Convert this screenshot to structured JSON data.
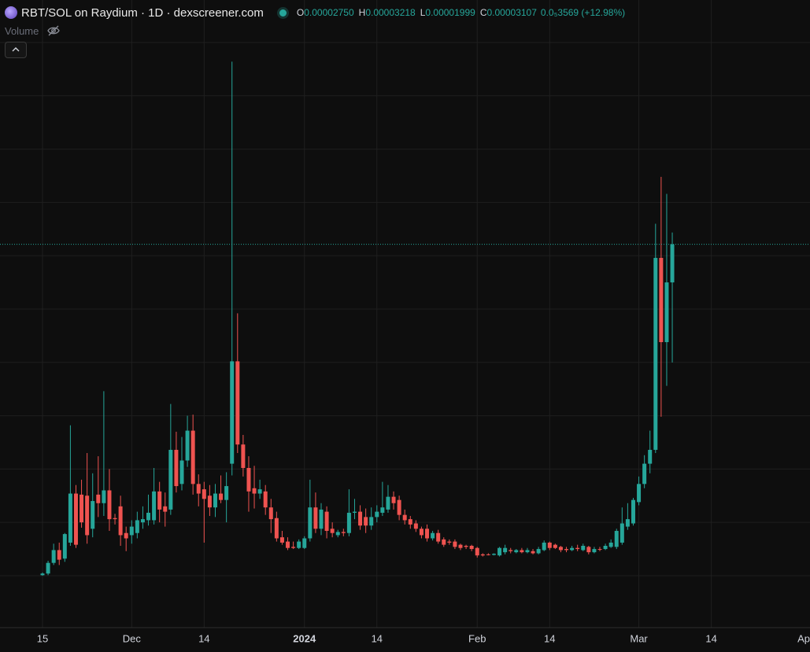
{
  "header": {
    "symbol": "RBT/SOL on Raydium · 1D · dexscreener.com",
    "ohlc": [
      {
        "key": "O",
        "value": "0.00002750"
      },
      {
        "key": "H",
        "value": "0.00003218"
      },
      {
        "key": "L",
        "value": "0.00001999"
      },
      {
        "key": "C",
        "value": "0.00003107"
      }
    ],
    "change": "0.0₅3569 (+12.98%)",
    "volume": "Volume"
  },
  "chart_data": {
    "type": "candlestick",
    "categories": [
      "15",
      null,
      null,
      null,
      null,
      null,
      null,
      null,
      null,
      null,
      null,
      null,
      null,
      null,
      null,
      null,
      "Dec",
      null,
      null,
      null,
      null,
      null,
      null,
      null,
      null,
      null,
      null,
      null,
      null,
      "14",
      null,
      null,
      null,
      null,
      null,
      null,
      null,
      null,
      null,
      null,
      null,
      null,
      null,
      null,
      null,
      null,
      null,
      "2024",
      null,
      null,
      null,
      null,
      null,
      null,
      null,
      null,
      null,
      null,
      null,
      null,
      "14",
      null,
      null,
      null,
      null,
      null,
      null,
      null,
      null,
      null,
      null,
      null,
      null,
      null,
      null,
      null,
      null,
      null,
      "Feb",
      null,
      null,
      null,
      null,
      null,
      null,
      null,
      null,
      null,
      null,
      null,
      null,
      "14",
      null,
      null,
      null,
      null,
      null,
      null,
      null,
      null,
      null,
      null,
      null,
      null,
      null,
      null,
      null,
      "Mar",
      null,
      null,
      null,
      null,
      null,
      null,
      null,
      null,
      null,
      null,
      null,
      null,
      "14",
      null,
      null,
      null,
      null,
      null,
      null,
      null,
      null,
      null,
      null,
      null,
      null,
      null,
      null,
      null,
      null,
      null,
      "Ap"
    ],
    "open": [
      5e-08,
      2e-07,
      1.2e-06,
      2.4e-06,
      1.6e-06,
      3.1e-06,
      7.7e-06,
      7.6e-06,
      7.5e-06,
      4.4e-06,
      7.6e-06,
      6.8e-06,
      8e-06,
      5.4e-06,
      6.5e-06,
      4e-06,
      3.8e-06,
      4e-06,
      5e-06,
      5.2e-06,
      5.2e-06,
      7.9e-06,
      6.5e-06,
      6.2e-06,
      1.18e-05,
      8.6e-06,
      1.08e-05,
      1.36e-05,
      8.6e-06,
      8.1e-06,
      7.5e-06,
      6.4e-06,
      7.7e-06,
      7.1e-06,
      1.05e-05,
      2.01e-05,
      1.23e-05,
      1.01e-05,
      8.2e-06,
      7.7e-06,
      7.9e-06,
      6.4e-06,
      5.4e-06,
      3.6e-06,
      3.2e-06,
      2.7e-06,
      2.6e-06,
      2.6e-06,
      3.5e-06,
      6.4e-06,
      4.4e-06,
      6e-06,
      4.4e-06,
      3.8e-06,
      4.1e-06,
      4e-06,
      5.9e-06,
      6e-06,
      5.5e-06,
      4.7e-06,
      5.5e-06,
      5.9e-06,
      6.2e-06,
      7.4e-06,
      7.1e-06,
      5.7e-06,
      5.3e-06,
      4.9e-06,
      4.4e-06,
      4.4e-06,
      3.5e-06,
      4e-06,
      3.4e-06,
      3.2e-06,
      3.2e-06,
      2.9e-06,
      2.8e-06,
      2.8e-06,
      2.6e-06,
      2e-06,
      2e-06,
      1.95e-06,
      1.9e-06,
      2.2e-06,
      2.4e-06,
      2.2e-06,
      2.4e-06,
      2.2e-06,
      2.3e-06,
      2.1e-06,
      2.4e-06,
      3.1e-06,
      2.9e-06,
      2.7e-06,
      2.5e-06,
      2.4e-06,
      2.6e-06,
      2.4e-06,
      2.7e-06,
      2.2e-06,
      2.5e-06,
      2.5e-06,
      2.7e-06,
      2.7e-06,
      3.1e-06,
      4.6e-06,
      4.9e-06,
      6.9e-06,
      8.6e-06,
      1.05e-05,
      1.18e-05,
      2.98e-05,
      2.19e-05,
      2.75e-05,
      null,
      null,
      null,
      null,
      null,
      null,
      null,
      null,
      null,
      null,
      null,
      null,
      null,
      null,
      null,
      null,
      null,
      null,
      null,
      null,
      null,
      null,
      null,
      null,
      null
    ],
    "high": [
      3e-07,
      1.4e-06,
      3e-06,
      3.1e-06,
      4e-06,
      1.41e-05,
      8.5e-06,
      9e-06,
      1.15e-05,
      9.6e-06,
      1.12e-05,
      1.73e-05,
      1e-05,
      5.8e-06,
      7.5e-06,
      4.6e-06,
      5.2e-06,
      6e-06,
      6.5e-06,
      7.6e-06,
      1.01e-05,
      8.8e-06,
      7.8e-06,
      1.61e-05,
      1.35e-05,
      1.3e-05,
      1.5e-05,
      1.51e-05,
      9.5e-06,
      8.8e-06,
      8.5e-06,
      8.6e-06,
      9.4e-06,
      9.7e-06,
      4.82e-05,
      2.46e-05,
      1.32e-05,
      1.12e-05,
      1.03e-05,
      9e-06,
      8.5e-06,
      7.2e-06,
      6e-06,
      4.2e-06,
      3.6e-06,
      3.2e-06,
      3.4e-06,
      3.7e-06,
      9e-06,
      7.8e-06,
      6.8e-06,
      6.5e-06,
      5e-06,
      4.3e-06,
      4.4e-06,
      8.1e-06,
      7.2e-06,
      6.6e-06,
      6.3e-06,
      6.4e-06,
      6.6e-06,
      8.8e-06,
      8.5e-06,
      7.9e-06,
      7.5e-06,
      6.2e-06,
      5.6e-06,
      5.2e-06,
      4.6e-06,
      4.8e-06,
      4.2e-06,
      4.3e-06,
      3.6e-06,
      3.4e-06,
      3.4e-06,
      3e-06,
      2.9e-06,
      2.9e-06,
      2.7e-06,
      2.1e-06,
      2.1e-06,
      2.1e-06,
      2.7e-06,
      2.9e-06,
      2.6e-06,
      2.5e-06,
      2.6e-06,
      2.6e-06,
      2.5e-06,
      2.7e-06,
      3.3e-06,
      3.2e-06,
      3e-06,
      2.8e-06,
      2.7e-06,
      2.8e-06,
      2.9e-06,
      3e-06,
      2.8e-06,
      2.7e-06,
      2.7e-06,
      3e-06,
      3.4e-06,
      4.4e-06,
      6.4e-06,
      6.8e-06,
      7.3e-06,
      9.3e-06,
      1.13e-05,
      1.36e-05,
      3.3e-05,
      3.74e-05,
      3.58e-05,
      3.218e-05,
      null,
      null,
      null,
      null,
      null,
      null,
      null,
      null,
      null,
      null,
      null,
      null,
      null,
      null,
      null,
      null,
      null,
      null,
      null,
      null,
      null,
      null,
      null,
      null,
      null
    ],
    "low": [
      0,
      5e-08,
      1e-06,
      1e-06,
      1.3e-06,
      2.8e-06,
      2.6e-06,
      4.5e-06,
      3e-06,
      3.6e-06,
      5.5e-06,
      5.6e-06,
      4.2e-06,
      4.8e-06,
      2.8e-06,
      2.3e-06,
      3e-06,
      3.5e-06,
      4.4e-06,
      4.7e-06,
      4.8e-06,
      5e-06,
      4.6e-06,
      5.7e-06,
      7.8e-06,
      8e-06,
      1.02e-05,
      7.6e-06,
      6.5e-06,
      3.1e-06,
      5.6e-06,
      5.5e-06,
      6.8e-06,
      5e-06,
      9.4e-06,
      1.15e-05,
      9.3e-06,
      6e-06,
      6.3e-06,
      7.2e-06,
      5.7e-06,
      4e-06,
      3.2e-06,
      2.9e-06,
      2.4e-06,
      2.5e-06,
      2.5e-06,
      2.5e-06,
      3.2e-06,
      4e-06,
      3.8e-06,
      3.5e-06,
      3.6e-06,
      3.6e-06,
      3.7e-06,
      3.7e-06,
      5.3e-06,
      4.3e-06,
      4e-06,
      4.3e-06,
      5e-06,
      5.6e-06,
      5.9e-06,
      6.2e-06,
      5.2e-06,
      4.8e-06,
      4.4e-06,
      4.1e-06,
      3.5e-06,
      3.2e-06,
      3.3e-06,
      3e-06,
      2.7e-06,
      2.9e-06,
      2.5e-06,
      2.4e-06,
      2.5e-06,
      2.3e-06,
      1.7e-06,
      1.8e-06,
      1.9e-06,
      1.9e-06,
      1.8e-06,
      2e-06,
      2.1e-06,
      2.1e-06,
      2.1e-06,
      2.1e-06,
      2e-06,
      2e-06,
      2.3e-06,
      2.4e-06,
      2.5e-06,
      2.2e-06,
      2.2e-06,
      2.3e-06,
      2.3e-06,
      2.3e-06,
      2e-06,
      2.1e-06,
      2.3e-06,
      2.4e-06,
      2.6e-06,
      2.5e-06,
      2.9e-06,
      4.3e-06,
      4.7e-06,
      6.6e-06,
      8.2e-06,
      9.6e-06,
      1.15e-05,
      1.49e-05,
      1.78e-05,
      1.999e-05,
      null,
      null,
      null,
      null,
      null,
      null,
      null,
      null,
      null,
      null,
      null,
      null,
      null,
      null,
      null,
      null,
      null,
      null,
      null,
      null,
      null,
      null,
      null,
      null,
      null
    ],
    "close": [
      2e-07,
      1.2e-06,
      2.4e-06,
      1.5e-06,
      3.9e-06,
      7.7e-06,
      2.9e-06,
      5e-06,
      3.8e-06,
      7e-06,
      6.8e-06,
      8e-06,
      5.3e-06,
      5.3e-06,
      3.8e-06,
      3.5e-06,
      4.6e-06,
      5.2e-06,
      5.3e-06,
      5.9e-06,
      7.9e-06,
      6.2e-06,
      6e-06,
      1.18e-05,
      8.4e-06,
      1.08e-05,
      1.36e-05,
      8.6e-06,
      7.7e-06,
      7.2e-06,
      6.4e-06,
      7.7e-06,
      7.1e-06,
      8.4e-06,
      2.01e-05,
      1.23e-05,
      1.01e-05,
      7.9e-06,
      7.7e-06,
      8.1e-06,
      6.4e-06,
      5.3e-06,
      3.5e-06,
      3.1e-06,
      2.6e-06,
      2.6e-06,
      3.2e-06,
      3.5e-06,
      6.4e-06,
      4.4e-06,
      6.2e-06,
      4.2e-06,
      4e-06,
      4.1e-06,
      4e-06,
      5.9e-06,
      6e-06,
      4.7e-06,
      4.7e-06,
      5.5e-06,
      6e-06,
      6.4e-06,
      7.4e-06,
      6.8e-06,
      5.7e-06,
      5.2e-06,
      4.8e-06,
      4.4e-06,
      3.8e-06,
      3.5e-06,
      4e-06,
      3.2e-06,
      2.9e-06,
      3.1e-06,
      2.7e-06,
      2.6e-06,
      2.7e-06,
      2.5e-06,
      1.9e-06,
      1.9e-06,
      1.95e-06,
      2.05e-06,
      2.6e-06,
      2.6e-06,
      2.3e-06,
      2.4e-06,
      2.2e-06,
      2.4e-06,
      2.1e-06,
      2.5e-06,
      3.1e-06,
      2.6e-06,
      2.6e-06,
      2.4e-06,
      2.4e-06,
      2.6e-06,
      2.5e-06,
      2.8e-06,
      2.2e-06,
      2.5e-06,
      2.45e-06,
      2.8e-06,
      3.1e-06,
      4.2e-06,
      4.9e-06,
      5.3e-06,
      7.1e-06,
      8.6e-06,
      1.05e-05,
      1.18e-05,
      2.98e-05,
      2.19e-05,
      2.75e-05,
      3.107e-05,
      null,
      null,
      null,
      null,
      null,
      null,
      null,
      null,
      null,
      null,
      null,
      null,
      null,
      null,
      null,
      null,
      null,
      null,
      null,
      null,
      null,
      null,
      null,
      null,
      null
    ],
    "up_color": "#26a69a",
    "down_color": "#ef5350",
    "ylim": [
      -4.87e-06,
      5.398e-05
    ],
    "ygrid": [
      0,
      5e-06,
      1e-05,
      1.5e-05,
      2e-05,
      2.5e-05,
      3e-05,
      3.5e-05,
      4e-05,
      4.5e-05,
      5e-05
    ],
    "grid": true,
    "last_price_line": true
  }
}
